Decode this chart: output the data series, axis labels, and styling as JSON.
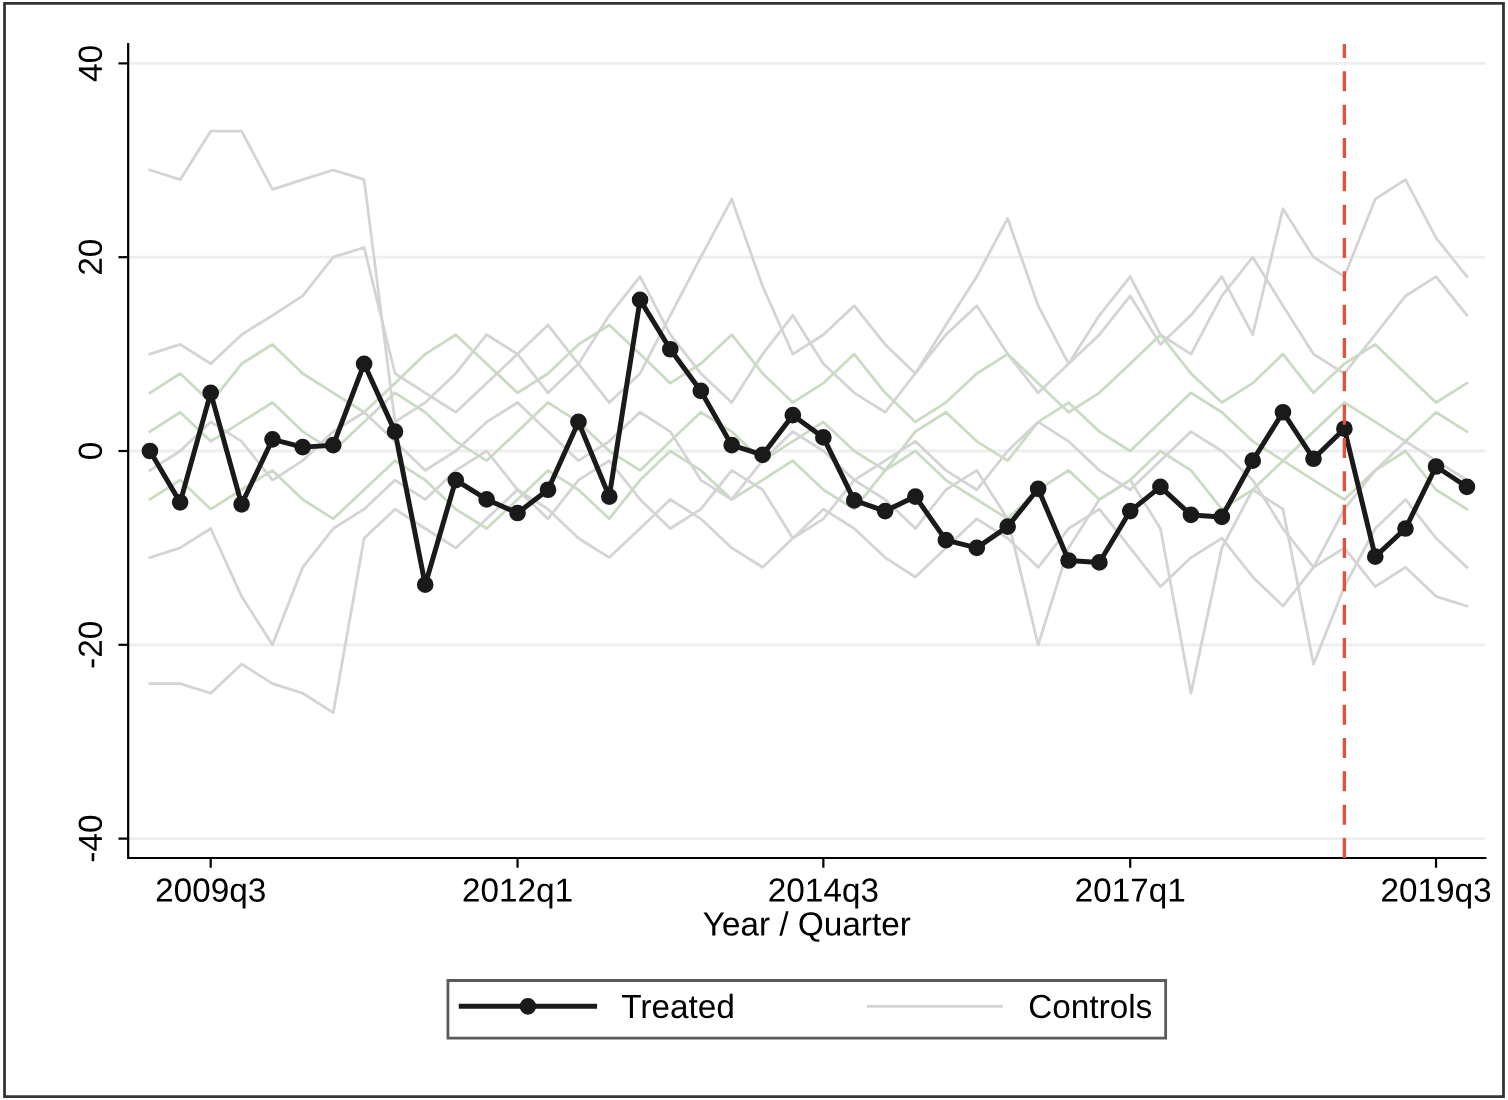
{
  "chart_data": {
    "type": "line",
    "xlabel": "Year / Quarter",
    "x": [
      "2009-01",
      "2009-04",
      "2009-07",
      "2009-10",
      "2010-01",
      "2010-04",
      "2010-07",
      "2010-10",
      "2011-01",
      "2011-04",
      "2011-07",
      "2011-10",
      "2012-01",
      "2012-04",
      "2012-07",
      "2012-10",
      "2013-01",
      "2013-04",
      "2013-07",
      "2013-10",
      "2014-01",
      "2014-04",
      "2014-07",
      "2014-10",
      "2015-01",
      "2015-04",
      "2015-07",
      "2015-10",
      "2016-01",
      "2016-04",
      "2016-07",
      "2016-10",
      "2017-01",
      "2017-04",
      "2017-07",
      "2017-10",
      "2018-01",
      "2018-04",
      "2018-07",
      "2018-10",
      "2019-01",
      "2019-04",
      "2019-07",
      "2019-10"
    ],
    "xlim": [
      "2008-10-28",
      "2019-11-25"
    ],
    "xticks": [
      {
        "value": "2009-07",
        "label": "2009q3"
      },
      {
        "value": "2012-01",
        "label": "2012q1"
      },
      {
        "value": "2014-07",
        "label": "2014q3"
      },
      {
        "value": "2017-01",
        "label": "2017q1"
      },
      {
        "value": "2019-07",
        "label": "2019q3"
      }
    ],
    "ylim": [
      -42,
      42
    ],
    "yticks": [
      -40,
      -20,
      0,
      20,
      40
    ],
    "grid": "y",
    "legend": "bottom",
    "ref_lines": [
      {
        "axis": "x",
        "value": "2018-10",
        "color": "#e0533a",
        "line_style": "dashed"
      }
    ],
    "series": [
      {
        "name": "Controls",
        "color": "#d4d4d4",
        "values": [
          29,
          28,
          33,
          33,
          27,
          28,
          29,
          28,
          3,
          5,
          8,
          12,
          10,
          6,
          9,
          14,
          18,
          12,
          8,
          5,
          10,
          14,
          9,
          6,
          4,
          8,
          12,
          15,
          10,
          6,
          9,
          14,
          18,
          12,
          10,
          16,
          20,
          15,
          10,
          8,
          12,
          16,
          18,
          14
        ]
      },
      {
        "color": "#d4d4d4",
        "values": [
          -24,
          -24,
          -25,
          -22,
          -24,
          -25,
          -27,
          -9,
          -6,
          -8,
          -10,
          -7,
          -4,
          -6,
          -9,
          -11,
          -8,
          -5,
          -7,
          -10,
          -12,
          -9,
          -6,
          -8,
          -11,
          -13,
          -10,
          -7,
          -9,
          -12,
          -8,
          -6,
          -10,
          -14,
          -11,
          -9,
          -13,
          -16,
          -12,
          -10,
          -14,
          -12,
          -15,
          -16
        ]
      },
      {
        "color": "#d4d4d4",
        "values": [
          10,
          11,
          9,
          12,
          14,
          16,
          20,
          21,
          8,
          6,
          4,
          7,
          10,
          13,
          9,
          5,
          8,
          14,
          20,
          26,
          17,
          10,
          12,
          15,
          11,
          8,
          13,
          18,
          24,
          15,
          9,
          12,
          16,
          11,
          14,
          18,
          12,
          25,
          20,
          18,
          26,
          28,
          22,
          18
        ]
      },
      {
        "color": "#d4d4d4",
        "values": [
          -11,
          -10,
          -8,
          -15,
          -20,
          -12,
          -8,
          -6,
          -3,
          -5,
          -2,
          0,
          -4,
          -7,
          -3,
          -1,
          -5,
          -8,
          -6,
          -2,
          -4,
          -9,
          -7,
          -3,
          -5,
          -8,
          -4,
          -2,
          -7,
          -20,
          -10,
          -5,
          -3,
          -8,
          -25,
          -10,
          -4,
          -6,
          -22,
          -14,
          -8,
          -5,
          -9,
          -12
        ]
      },
      {
        "color": "#c9dcc3",
        "values": [
          2,
          4,
          1,
          3,
          5,
          2,
          0,
          3,
          6,
          4,
          1,
          -1,
          2,
          5,
          3,
          0,
          -2,
          1,
          4,
          2,
          -1,
          1,
          3,
          0,
          -2,
          2,
          4,
          1,
          -1,
          3,
          5,
          2,
          0,
          3,
          6,
          4,
          1,
          -1,
          2,
          5,
          3,
          1,
          4,
          2
        ]
      },
      {
        "color": "#c9dcc3",
        "values": [
          -5,
          -3,
          -6,
          -4,
          -2,
          -5,
          -7,
          -4,
          -1,
          -3,
          -6,
          -8,
          -5,
          -2,
          -4,
          -7,
          -3,
          0,
          -2,
          -5,
          -3,
          -1,
          -4,
          -6,
          -2,
          0,
          -3,
          -5,
          -7,
          -4,
          -2,
          -5,
          -3,
          0,
          -2,
          -6,
          -4,
          -1,
          -3,
          -5,
          -2,
          0,
          -4,
          -6
        ]
      },
      {
        "color": "#c9dcc3",
        "values": [
          6,
          8,
          5,
          9,
          11,
          8,
          6,
          4,
          7,
          10,
          12,
          9,
          6,
          8,
          11,
          13,
          10,
          7,
          9,
          12,
          8,
          5,
          7,
          10,
          6,
          3,
          5,
          8,
          10,
          7,
          4,
          6,
          9,
          12,
          8,
          5,
          7,
          10,
          6,
          9,
          11,
          8,
          5,
          7
        ]
      },
      {
        "color": "#d4d4d4",
        "values": [
          -2,
          0,
          3,
          1,
          -3,
          -1,
          2,
          4,
          1,
          -2,
          0,
          3,
          5,
          2,
          -1,
          1,
          4,
          2,
          -3,
          -5,
          -1,
          2,
          0,
          -3,
          -1,
          1,
          -2,
          -4,
          0,
          3,
          1,
          -2,
          -4,
          -1,
          2,
          0,
          -3,
          -8,
          -12,
          -6,
          -2,
          1,
          -1,
          -3
        ]
      },
      {
        "name": "Treated",
        "color": "#1a1a1a",
        "marker": "circle",
        "values": [
          0,
          -5.3,
          6,
          -5.5,
          1.2,
          0.4,
          0.6,
          9,
          2,
          -13.8,
          -3,
          -5,
          -6.4,
          -4,
          3,
          -4.7,
          15.6,
          10.5,
          6.2,
          0.6,
          -0.4,
          3.7,
          1.4,
          -5.1,
          -6.2,
          -4.7,
          -9.2,
          -10,
          -7.8,
          -3.9,
          -11.3,
          -11.5,
          -6.2,
          -3.7,
          -6.6,
          -6.8,
          -1,
          4,
          -0.8,
          2.3,
          -10.9,
          -8,
          -1.6,
          -3.7
        ]
      }
    ]
  }
}
